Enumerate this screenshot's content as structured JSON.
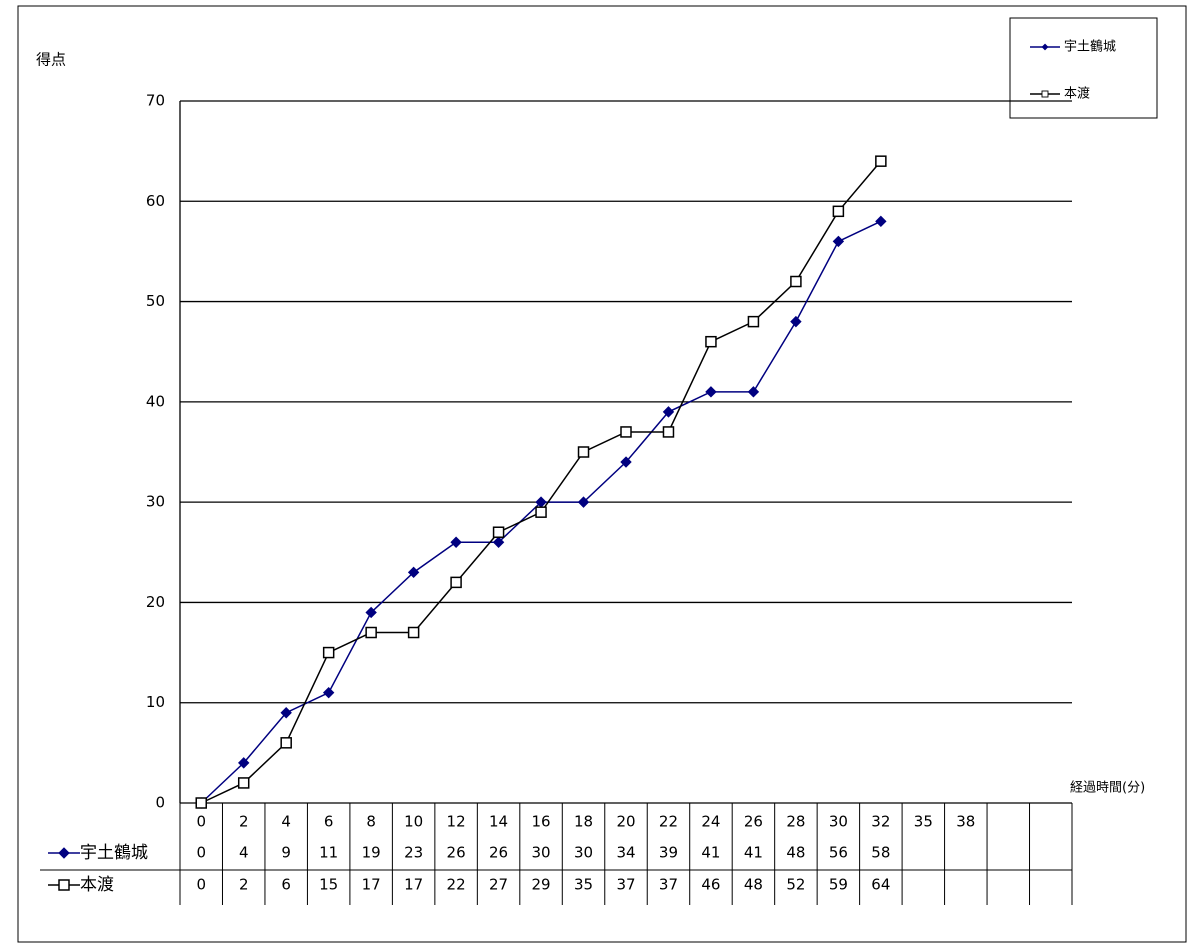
{
  "chart_data": {
    "type": "line",
    "y_label": "得点",
    "x_label": "経過時間(分)",
    "categories": [
      0,
      2,
      4,
      6,
      8,
      10,
      12,
      14,
      16,
      18,
      20,
      22,
      24,
      26,
      28,
      30,
      32,
      35,
      38,
      null,
      null
    ],
    "series": [
      {
        "name": "宇土鶴城",
        "color": "#000080",
        "marker": "diamond",
        "values": [
          0,
          4,
          9,
          11,
          19,
          23,
          26,
          26,
          30,
          30,
          34,
          39,
          41,
          41,
          48,
          56,
          58,
          null,
          null,
          null,
          null
        ]
      },
      {
        "name": "本渡",
        "color": "#000000",
        "marker": "square",
        "values": [
          0,
          2,
          6,
          15,
          17,
          17,
          22,
          27,
          29,
          35,
          37,
          37,
          46,
          48,
          52,
          59,
          64,
          null,
          null,
          null,
          null
        ]
      }
    ],
    "ylim": [
      0,
      70
    ],
    "yticks": [
      0,
      10,
      20,
      30,
      40,
      50,
      60,
      70
    ],
    "grid": true,
    "legend": "top-right"
  }
}
